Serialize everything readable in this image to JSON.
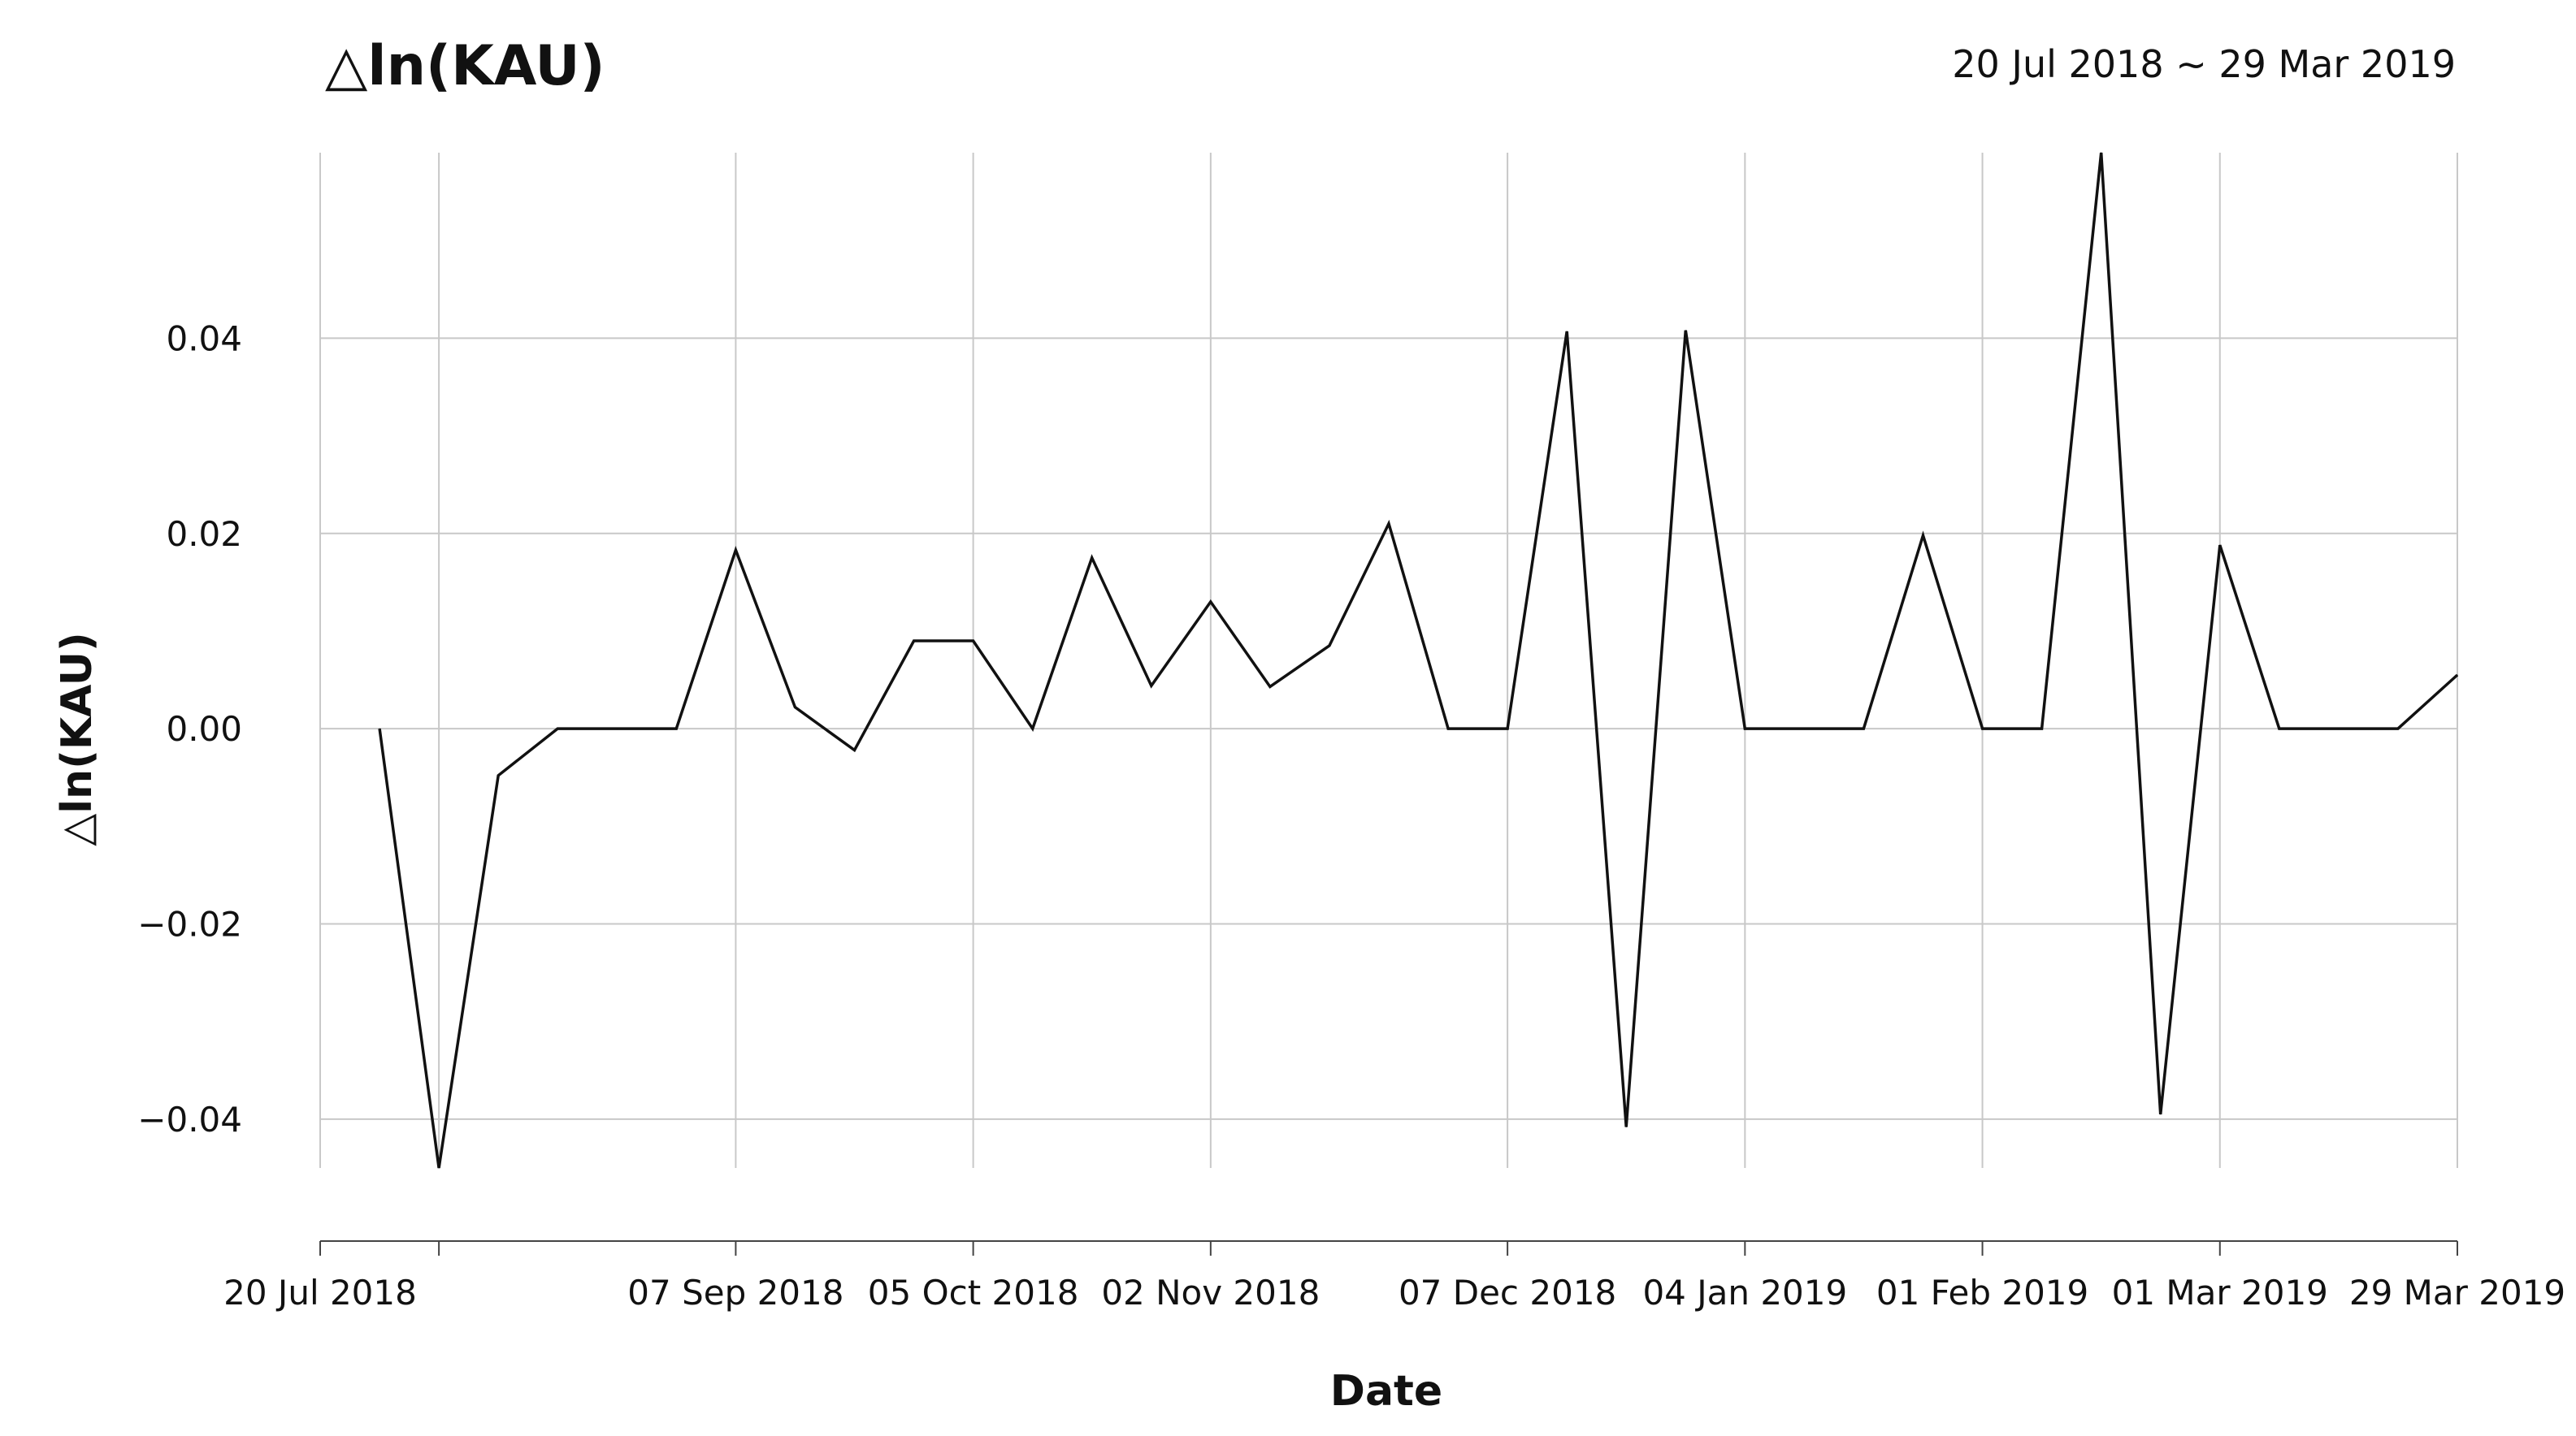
{
  "header": {
    "title": "△ln(KAU)",
    "date_range": "20 Jul 2018 ~ 29 Mar 2019"
  },
  "chart_data": {
    "type": "line",
    "title": "△ln(KAU)",
    "xlabel": "Date",
    "ylabel": "△ln(KAU)",
    "x_range": [
      "2018-07-20",
      "2019-03-29"
    ],
    "ylim": [
      -0.045,
      0.059
    ],
    "grid": true,
    "x_ticks": [
      {
        "date": "2018-07-20",
        "label": "20 Jul 2018"
      },
      {
        "date": "2018-08-03",
        "label": ""
      },
      {
        "date": "2018-09-07",
        "label": "07 Sep 2018"
      },
      {
        "date": "2018-10-05",
        "label": "05 Oct 2018"
      },
      {
        "date": "2018-11-02",
        "label": "02 Nov 2018"
      },
      {
        "date": "2018-12-07",
        "label": "07 Dec 2018"
      },
      {
        "date": "2019-01-04",
        "label": "04 Jan 2019"
      },
      {
        "date": "2019-02-01",
        "label": "01 Feb 2019"
      },
      {
        "date": "2019-03-01",
        "label": "01 Mar 2019"
      },
      {
        "date": "2019-03-29",
        "label": "29 Mar 2019"
      }
    ],
    "y_ticks": [
      {
        "value": 0.04,
        "label": "0.04"
      },
      {
        "value": 0.02,
        "label": "0.02"
      },
      {
        "value": 0.0,
        "label": "0.00"
      },
      {
        "value": -0.02,
        "label": "−0.02"
      },
      {
        "value": -0.04,
        "label": "−0.04"
      }
    ],
    "series": [
      {
        "points": [
          {
            "x": "2018-07-27",
            "y": 0.0
          },
          {
            "x": "2018-08-03",
            "y": -0.045
          },
          {
            "x": "2018-08-10",
            "y": -0.0048
          },
          {
            "x": "2018-08-17",
            "y": 0.0
          },
          {
            "x": "2018-08-24",
            "y": 0.0
          },
          {
            "x": "2018-08-31",
            "y": 0.0
          },
          {
            "x": "2018-09-07",
            "y": 0.0183
          },
          {
            "x": "2018-09-14",
            "y": 0.0022
          },
          {
            "x": "2018-09-21",
            "y": -0.0022
          },
          {
            "x": "2018-09-28",
            "y": 0.009
          },
          {
            "x": "2018-10-05",
            "y": 0.009
          },
          {
            "x": "2018-10-12",
            "y": 0.0
          },
          {
            "x": "2018-10-19",
            "y": 0.0175
          },
          {
            "x": "2018-10-26",
            "y": 0.0044
          },
          {
            "x": "2018-11-02",
            "y": 0.013
          },
          {
            "x": "2018-11-09",
            "y": 0.0043
          },
          {
            "x": "2018-11-16",
            "y": 0.0085
          },
          {
            "x": "2018-11-23",
            "y": 0.021
          },
          {
            "x": "2018-11-30",
            "y": 0.0
          },
          {
            "x": "2018-12-07",
            "y": 0.0
          },
          {
            "x": "2018-12-14",
            "y": 0.0407
          },
          {
            "x": "2018-12-21",
            "y": -0.0408
          },
          {
            "x": "2018-12-28",
            "y": 0.0408
          },
          {
            "x": "2019-01-04",
            "y": 0.0
          },
          {
            "x": "2019-01-11",
            "y": 0.0
          },
          {
            "x": "2019-01-18",
            "y": 0.0
          },
          {
            "x": "2019-01-25",
            "y": 0.0198
          },
          {
            "x": "2019-02-01",
            "y": 0.0
          },
          {
            "x": "2019-02-08",
            "y": 0.0
          },
          {
            "x": "2019-02-15",
            "y": 0.059
          },
          {
            "x": "2019-02-22",
            "y": -0.0395
          },
          {
            "x": "2019-03-01",
            "y": 0.0188
          },
          {
            "x": "2019-03-08",
            "y": 0.0
          },
          {
            "x": "2019-03-15",
            "y": 0.0
          },
          {
            "x": "2019-03-22",
            "y": 0.0
          },
          {
            "x": "2019-03-29",
            "y": 0.0055
          }
        ]
      }
    ]
  },
  "colors": {
    "line": "#111111",
    "grid": "#c8c8c8",
    "axis": "#444444",
    "text": "#111111"
  }
}
